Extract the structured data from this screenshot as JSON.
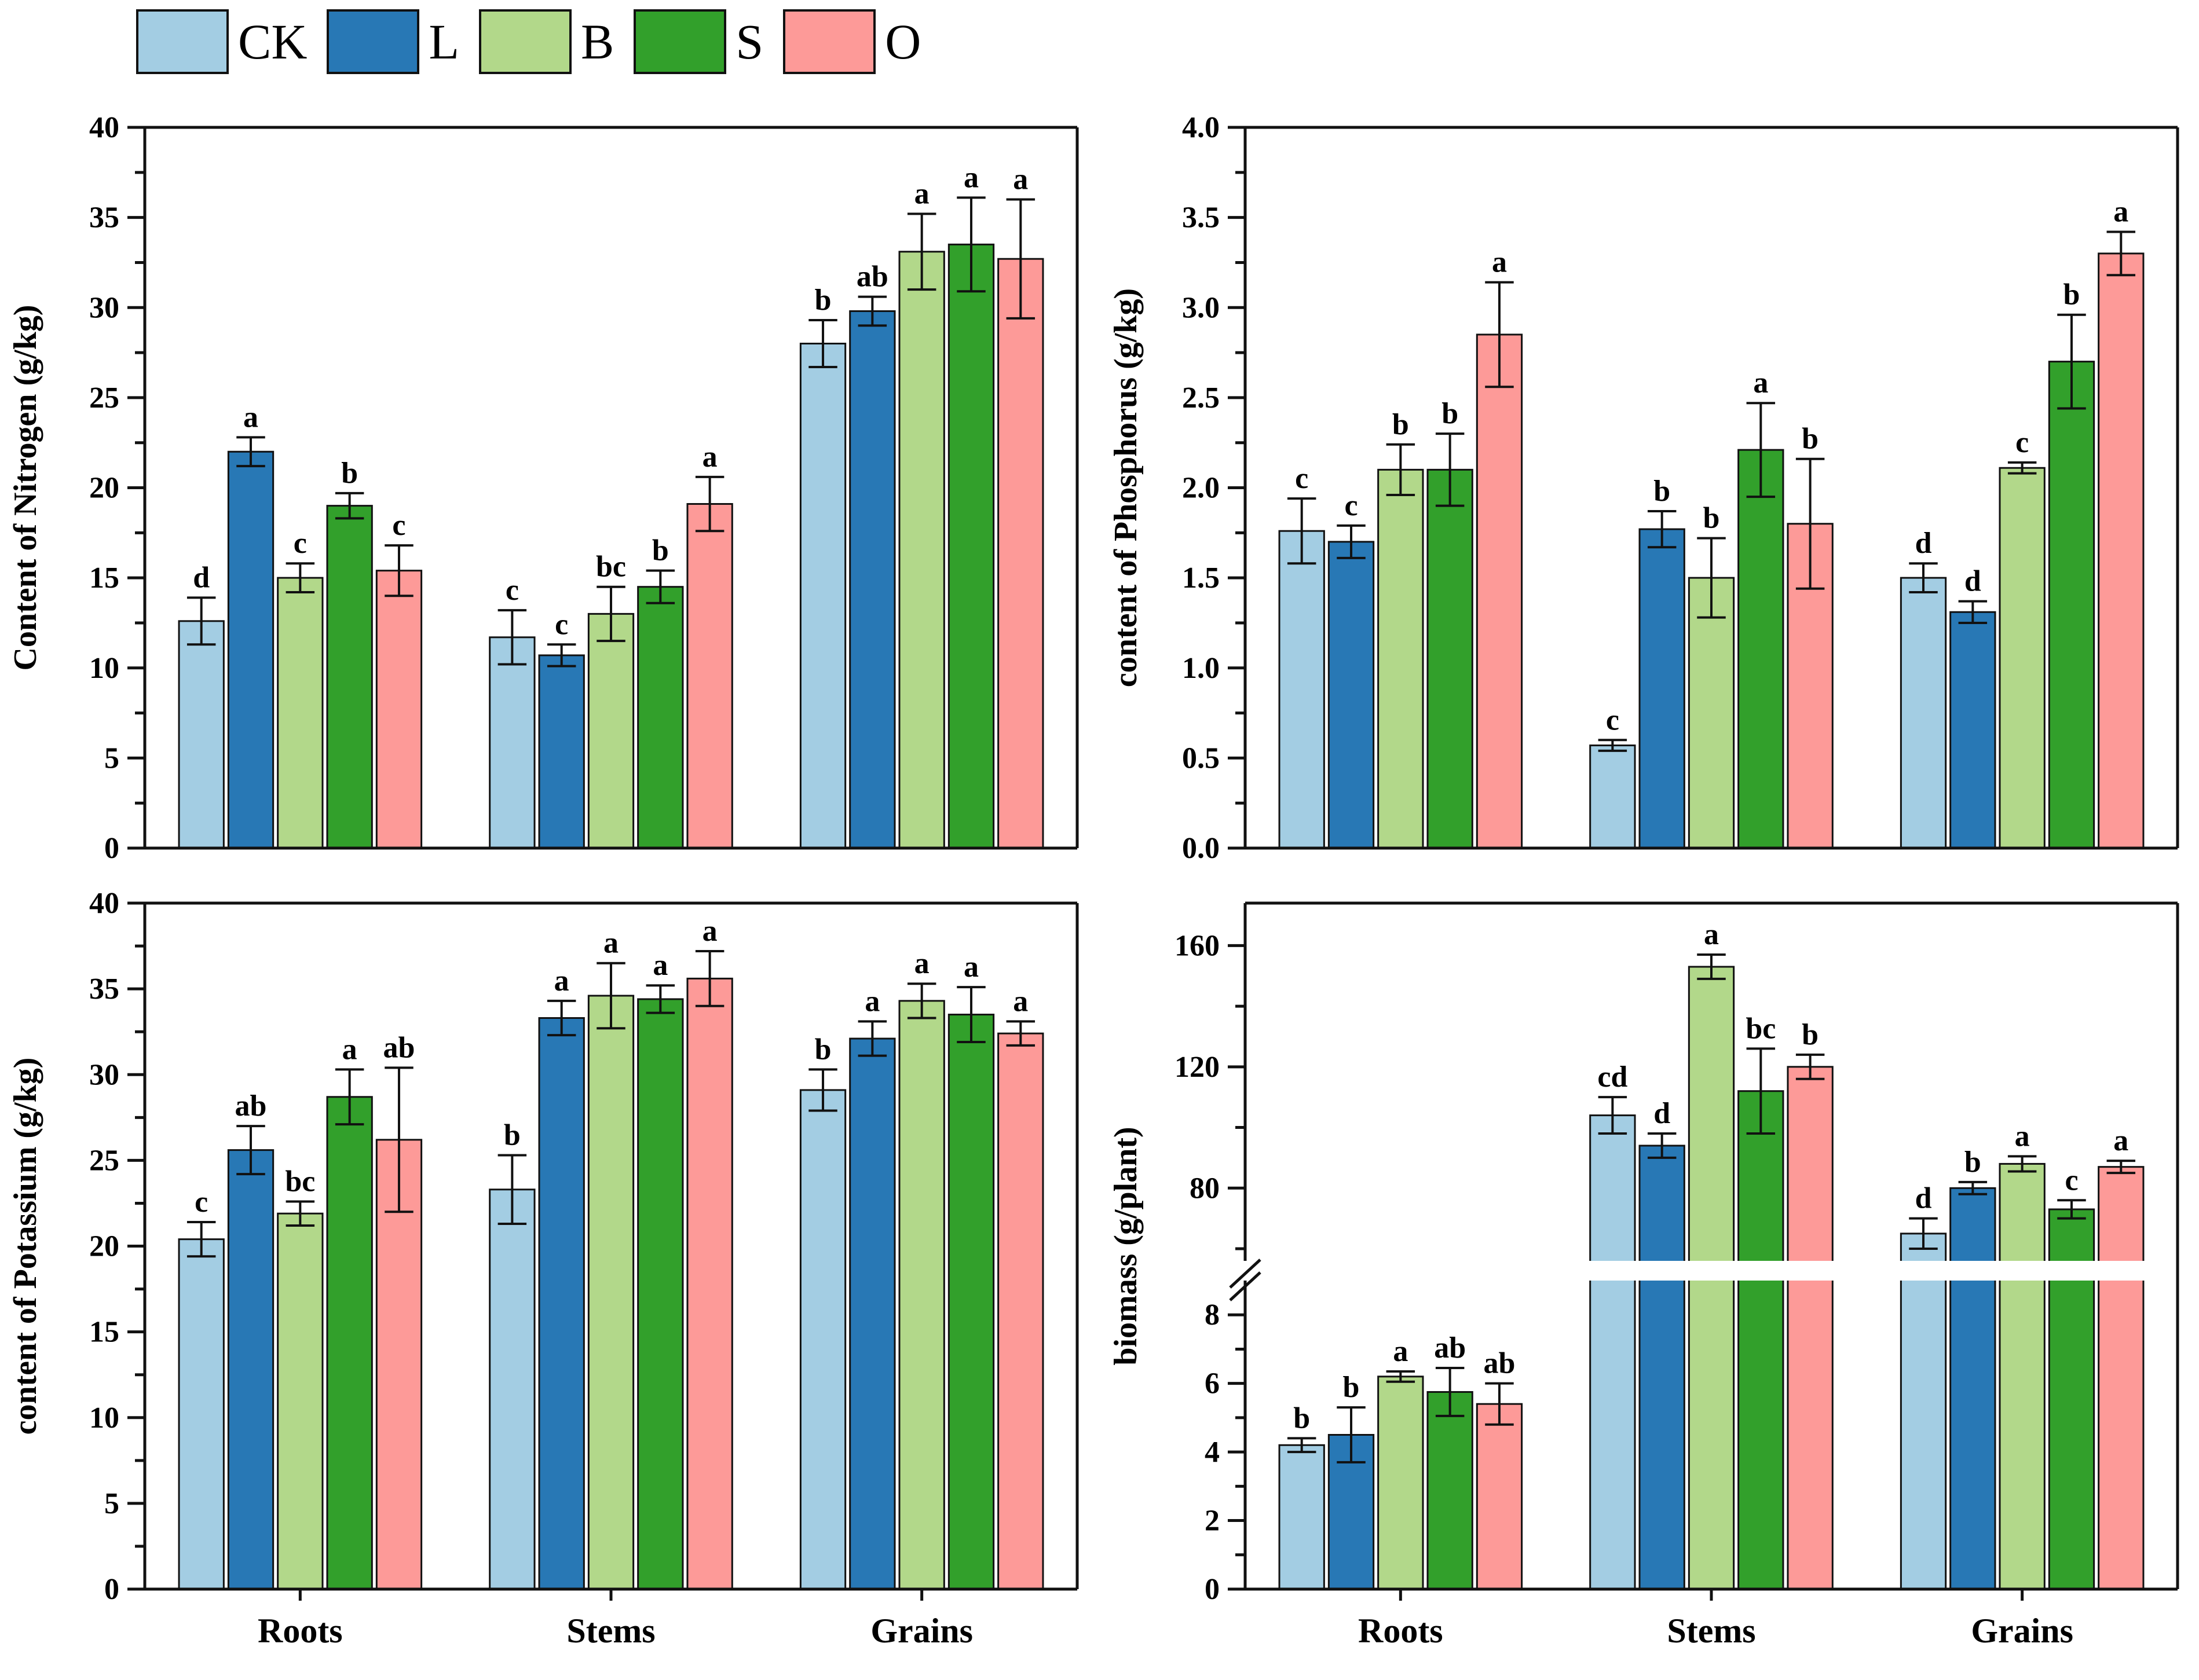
{
  "figure": {
    "background": "#ffffff",
    "axis_color": "#111111",
    "error_bar_color": "#111111"
  },
  "legend": {
    "items": [
      {
        "label": "CK",
        "color": "#a3cde3"
      },
      {
        "label": "L",
        "color": "#2878b5"
      },
      {
        "label": "B",
        "color": "#b2d88a"
      },
      {
        "label": "S",
        "color": "#32a02b"
      },
      {
        "label": "O",
        "color": "#fd9a98"
      }
    ]
  },
  "chart_data": [
    {
      "id": "nitrogen",
      "type": "bar",
      "title": "",
      "ylabel": "Content of  Nitrogen (g/kg)",
      "xlabel": "",
      "ylim": [
        0,
        40
      ],
      "ytick_step": 5,
      "yminor_step": 2.5,
      "ytick_decimals": 0,
      "show_xlabels": false,
      "grid": false,
      "legend_position": "top-left-outside",
      "categories": [
        "Roots",
        "Stems",
        "Grains"
      ],
      "series": [
        {
          "name": "CK",
          "values": [
            12.6,
            11.7,
            28.0
          ],
          "errors": [
            1.3,
            1.5,
            1.3
          ],
          "letters": [
            "d",
            "c",
            "b"
          ]
        },
        {
          "name": "L",
          "values": [
            22.0,
            10.7,
            29.8
          ],
          "errors": [
            0.8,
            0.6,
            0.8
          ],
          "letters": [
            "a",
            "c",
            "ab"
          ]
        },
        {
          "name": "B",
          "values": [
            15.0,
            13.0,
            33.1
          ],
          "errors": [
            0.8,
            1.5,
            2.1
          ],
          "letters": [
            "c",
            "bc",
            "a"
          ]
        },
        {
          "name": "S",
          "values": [
            19.0,
            14.5,
            33.5
          ],
          "errors": [
            0.7,
            0.9,
            2.6
          ],
          "letters": [
            "b",
            "b",
            "a"
          ]
        },
        {
          "name": "O",
          "values": [
            15.4,
            19.1,
            32.7
          ],
          "errors": [
            1.4,
            1.5,
            3.3
          ],
          "letters": [
            "c",
            "a",
            "a"
          ]
        }
      ]
    },
    {
      "id": "phosphorus",
      "type": "bar",
      "title": "",
      "ylabel": "content of  Phosphorus (g/kg)",
      "xlabel": "",
      "ylim": [
        0.0,
        4.0
      ],
      "ytick_step": 0.5,
      "yminor_step": 0.25,
      "ytick_decimals": 1,
      "show_xlabels": false,
      "grid": false,
      "categories": [
        "Roots",
        "Stems",
        "Grains"
      ],
      "series": [
        {
          "name": "CK",
          "values": [
            1.76,
            0.57,
            1.5
          ],
          "errors": [
            0.18,
            0.03,
            0.08
          ],
          "letters": [
            "c",
            "c",
            "d"
          ]
        },
        {
          "name": "L",
          "values": [
            1.7,
            1.77,
            1.31
          ],
          "errors": [
            0.09,
            0.1,
            0.06
          ],
          "letters": [
            "c",
            "b",
            "d"
          ]
        },
        {
          "name": "B",
          "values": [
            2.1,
            1.5,
            2.11
          ],
          "errors": [
            0.14,
            0.22,
            0.03
          ],
          "letters": [
            "b",
            "b",
            "c"
          ]
        },
        {
          "name": "S",
          "values": [
            2.1,
            2.21,
            2.7
          ],
          "errors": [
            0.2,
            0.26,
            0.26
          ],
          "letters": [
            "b",
            "a",
            "b"
          ]
        },
        {
          "name": "O",
          "values": [
            2.85,
            1.8,
            3.3
          ],
          "errors": [
            0.29,
            0.36,
            0.12
          ],
          "letters": [
            "a",
            "b",
            "a"
          ]
        }
      ]
    },
    {
      "id": "potassium",
      "type": "bar",
      "title": "",
      "ylabel": "content of  Potassium (g/kg)",
      "xlabel": "",
      "ylim": [
        0,
        40
      ],
      "ytick_step": 5,
      "yminor_step": 2.5,
      "ytick_decimals": 0,
      "show_xlabels": true,
      "grid": false,
      "categories": [
        "Roots",
        "Stems",
        "Grains"
      ],
      "series": [
        {
          "name": "CK",
          "values": [
            20.4,
            23.3,
            29.1
          ],
          "errors": [
            1.0,
            2.0,
            1.2
          ],
          "letters": [
            "c",
            "b",
            "b"
          ]
        },
        {
          "name": "L",
          "values": [
            25.6,
            33.3,
            32.1
          ],
          "errors": [
            1.4,
            1.0,
            1.0
          ],
          "letters": [
            "ab",
            "a",
            "a"
          ]
        },
        {
          "name": "B",
          "values": [
            21.9,
            34.6,
            34.3
          ],
          "errors": [
            0.7,
            1.9,
            1.0
          ],
          "letters": [
            "bc",
            "a",
            "a"
          ]
        },
        {
          "name": "S",
          "values": [
            28.7,
            34.4,
            33.5
          ],
          "errors": [
            1.6,
            0.8,
            1.6
          ],
          "letters": [
            "a",
            "a",
            "a"
          ]
        },
        {
          "name": "O",
          "values": [
            26.2,
            35.6,
            32.4
          ],
          "errors": [
            4.2,
            1.6,
            0.7
          ],
          "letters": [
            "ab",
            "a",
            "a"
          ]
        }
      ]
    },
    {
      "id": "biomass",
      "type": "bar-broken-axis",
      "title": "",
      "ylabel": "biomass  (g/plant)",
      "xlabel": "",
      "show_xlabels": true,
      "grid": false,
      "axis_lower": {
        "lim": [
          0,
          9
        ],
        "ticks": [
          0,
          2,
          4,
          6,
          8
        ],
        "minor": [
          1,
          3,
          5,
          7
        ],
        "decimals": 0
      },
      "axis_upper": {
        "lim": [
          56,
          174
        ],
        "ticks": [
          80,
          120,
          160
        ],
        "minor": [
          60,
          100,
          140
        ],
        "decimals": 0
      },
      "categories": [
        "Roots",
        "Stems",
        "Grains"
      ],
      "series": [
        {
          "name": "CK",
          "values": [
            4.2,
            104,
            65
          ],
          "errors": [
            0.2,
            6,
            5
          ],
          "letters": [
            "b",
            "cd",
            "d"
          ]
        },
        {
          "name": "L",
          "values": [
            4.5,
            94,
            80
          ],
          "errors": [
            0.8,
            4,
            2
          ],
          "letters": [
            "b",
            "d",
            "b"
          ]
        },
        {
          "name": "B",
          "values": [
            6.2,
            153,
            88
          ],
          "errors": [
            0.15,
            4,
            2.5
          ],
          "letters": [
            "a",
            "a",
            "a"
          ]
        },
        {
          "name": "S",
          "values": [
            5.75,
            112,
            73
          ],
          "errors": [
            0.7,
            14,
            3
          ],
          "letters": [
            "ab",
            "bc",
            "c"
          ]
        },
        {
          "name": "O",
          "values": [
            5.4,
            120,
            87
          ],
          "errors": [
            0.6,
            4,
            2
          ],
          "letters": [
            "ab",
            "b",
            "a"
          ]
        }
      ]
    }
  ]
}
